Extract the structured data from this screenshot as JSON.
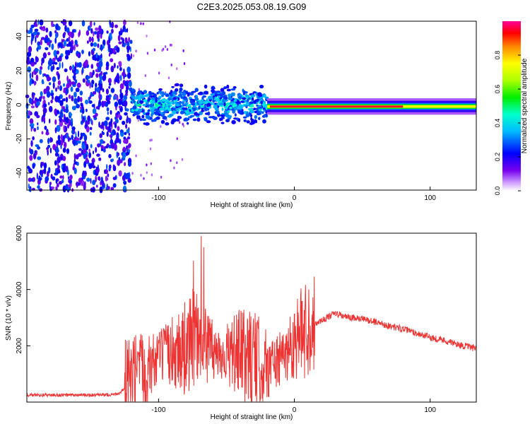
{
  "title": "C2E3.2025.053.08.19.G09",
  "chart_data": [
    {
      "type": "heatmap",
      "xlabel": "Height of straight line (km)",
      "ylabel": "Frequency (Hz)",
      "xlim": [
        -197,
        134
      ],
      "ylim": [
        -50,
        49
      ],
      "x_ticks": [
        -100,
        0,
        100
      ],
      "y_ticks": [
        40,
        20,
        0,
        -20,
        -40
      ],
      "colorbar": {
        "label": "Normalized spectral amplitude",
        "range": [
          0,
          1
        ],
        "ticks": [
          0.0,
          0.2,
          0.4,
          0.6,
          0.8
        ]
      },
      "regions": [
        {
          "x_range": [
            -197,
            -120
          ],
          "description": "scattered noise",
          "amplitude": [
            0.1,
            0.3
          ]
        },
        {
          "x_range": [
            -120,
            -20
          ],
          "center_freq": 0,
          "spread_hz": 12,
          "amplitude": [
            0.2,
            0.45
          ]
        },
        {
          "x_range": [
            -20,
            134
          ],
          "center_freq": -1,
          "spread_hz": 3,
          "amplitude_peak": 0.95
        }
      ]
    },
    {
      "type": "line",
      "xlabel": "Height of straight line (km)",
      "ylabel": "SNR (10 * v/v)",
      "xlim": [
        -197,
        134
      ],
      "ylim": [
        0,
        6000
      ],
      "x_ticks": [
        -100,
        0,
        100
      ],
      "y_ticks": [
        2000,
        4000,
        6000
      ],
      "series": [
        {
          "color": "#ee3333",
          "x": [
            -197,
            -180,
            -160,
            -140,
            -130,
            -120,
            -110,
            -100,
            -90,
            -80,
            -70,
            -60,
            -50,
            -40,
            -30,
            -20,
            -10,
            0,
            10,
            20,
            30,
            40,
            50,
            60,
            70,
            80,
            90,
            100,
            110,
            120,
            134
          ],
          "y": [
            250,
            250,
            250,
            250,
            300,
            600,
            1100,
            1600,
            1800,
            1900,
            2200,
            1800,
            1700,
            1700,
            1500,
            1300,
            1500,
            2200,
            2700,
            2900,
            3150,
            3000,
            2950,
            2850,
            2700,
            2600,
            2450,
            2300,
            2200,
            2050,
            1900
          ]
        }
      ]
    }
  ]
}
